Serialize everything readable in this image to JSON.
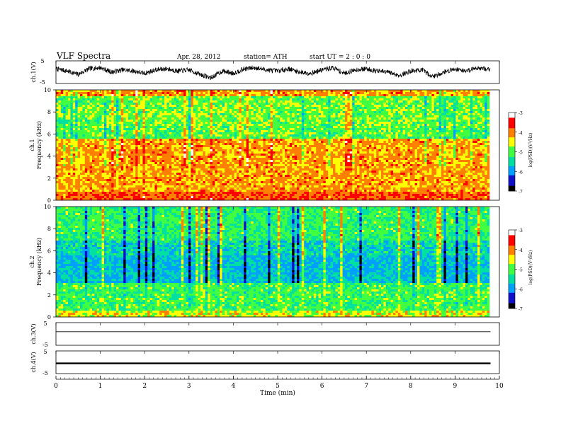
{
  "header": {
    "title": "VLF Spectra",
    "date": "Apr. 28, 2012",
    "station": "station= ATH",
    "start": "start  UT  =   2  : 0  : 0"
  },
  "chart_data": [
    {
      "type": "line",
      "id": "ch1-waveform",
      "ylabel": "ch.1(V)",
      "ylim": [
        -5,
        5
      ],
      "yticks": [
        "5",
        "-5"
      ],
      "xlim": [
        0,
        10
      ],
      "x": [
        0,
        0.25,
        0.5,
        0.75,
        1.0,
        1.25,
        1.5,
        1.75,
        2.0,
        2.25,
        2.5,
        2.75,
        3.0,
        3.25,
        3.5,
        3.75,
        4.0,
        4.25,
        4.5,
        4.75,
        5.0,
        5.25,
        5.5,
        5.75,
        6.0,
        6.25,
        6.5,
        6.75,
        7.0,
        7.25,
        7.5,
        7.75,
        8.0,
        8.25,
        8.5,
        8.75,
        9.0,
        9.25,
        9.5,
        9.8
      ],
      "y": [
        1.5,
        0.5,
        -1.0,
        1.5,
        2.0,
        0.0,
        1.0,
        0.5,
        -0.5,
        1.0,
        1.5,
        0.5,
        1.0,
        -1.0,
        -2.5,
        0.5,
        -0.5,
        1.5,
        2.0,
        1.0,
        0.5,
        1.5,
        0.0,
        -0.5,
        1.0,
        2.0,
        -0.5,
        1.0,
        1.5,
        0.5,
        0.0,
        -1.5,
        0.5,
        1.0,
        -2.0,
        0.0,
        1.5,
        0.5,
        2.0,
        1.0
      ]
    },
    {
      "type": "heatmap",
      "id": "ch1-spectrogram",
      "ylabel": "Frequency  (kHz)",
      "channel": "ch.1",
      "ylim": [
        0,
        10
      ],
      "yticks": [
        "0",
        "2",
        "4",
        "6",
        "8",
        "10"
      ],
      "xlim": [
        0,
        10
      ],
      "colorbar": {
        "label": "log(PSD)(V²/Hz)",
        "range": [
          -7,
          -3
        ],
        "ticks": [
          "-3",
          "-4",
          "-5",
          "-6",
          "-7"
        ]
      }
    },
    {
      "type": "heatmap",
      "id": "ch2-spectrogram",
      "ylabel": "Frequency  (kHz)",
      "channel": "ch.2",
      "ylim": [
        0,
        10
      ],
      "yticks": [
        "0",
        "2",
        "4",
        "6",
        "8",
        "10"
      ],
      "xlim": [
        0,
        10
      ],
      "colorbar": {
        "label": "log(PSD)(V²/Hz)",
        "range": [
          -7,
          -3
        ],
        "ticks": [
          "-3",
          "-4",
          "-5",
          "-6",
          "-7"
        ]
      }
    },
    {
      "type": "line",
      "id": "ch3-waveform",
      "ylabel": "ch.3(V)",
      "ylim": [
        -5,
        5
      ],
      "yticks": [
        "5",
        "-5"
      ],
      "xlim": [
        0,
        10
      ],
      "x": [
        0,
        9.8
      ],
      "y": [
        1.0,
        1.0
      ]
    },
    {
      "type": "line",
      "id": "ch4-waveform",
      "ylabel": "ch.4(V)",
      "ylim": [
        -5,
        5
      ],
      "yticks": [
        "5",
        "-5"
      ],
      "xlim": [
        0,
        10
      ],
      "x": [
        0,
        9.8
      ],
      "y": [
        -0.5,
        -0.5
      ]
    }
  ],
  "x_axis": {
    "label": "Time  (min)",
    "ticks": [
      "0",
      "1",
      "2",
      "3",
      "4",
      "5",
      "6",
      "7",
      "8",
      "9",
      "10"
    ]
  },
  "colors": {
    "colormap": [
      "#000000",
      "#1010c8",
      "#00a0ff",
      "#00e0a0",
      "#40ff40",
      "#ffff00",
      "#ff8000",
      "#ff0000",
      "#ffffff"
    ],
    "trace": "#000000"
  }
}
